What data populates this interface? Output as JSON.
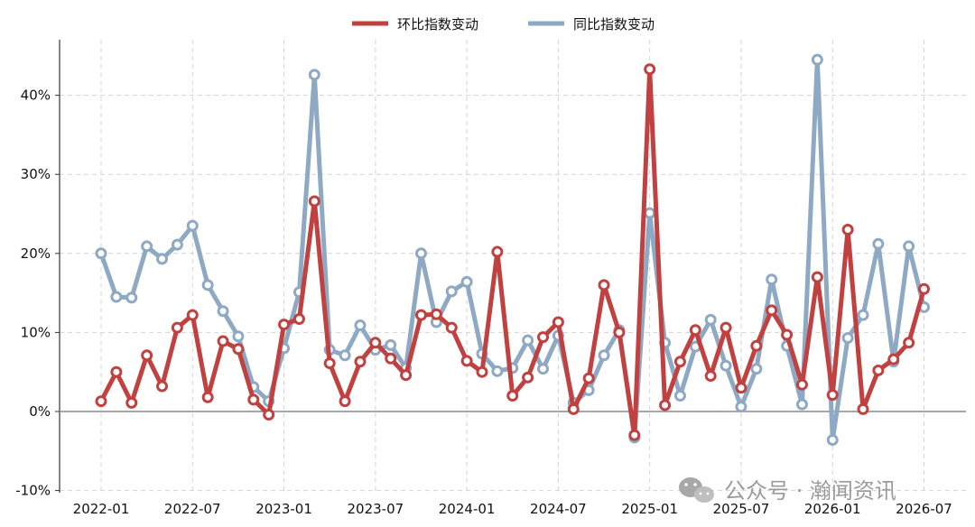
{
  "chart_data": {
    "type": "line",
    "x": [
      "2022-01",
      "2022-02",
      "2022-03",
      "2022-04",
      "2022-05",
      "2022-06",
      "2022-07",
      "2022-08",
      "2022-09",
      "2022-10",
      "2022-11",
      "2022-12",
      "2023-01",
      "2023-02",
      "2023-03",
      "2023-04",
      "2023-05",
      "2023-06",
      "2023-07",
      "2023-08",
      "2023-09",
      "2023-10",
      "2023-11",
      "2023-12",
      "2024-01",
      "2024-02",
      "2024-03",
      "2024-04",
      "2024-05",
      "2024-06",
      "2024-07",
      "2024-08",
      "2024-09",
      "2024-10",
      "2024-11",
      "2024-12",
      "2025-01",
      "2025-02",
      "2025-03",
      "2025-04",
      "2025-05",
      "2025-06",
      "2025-07",
      "2025-08",
      "2025-09",
      "2025-10",
      "2025-11",
      "2025-12",
      "2026-01",
      "2026-02",
      "2026-03",
      "2026-04",
      "2026-05",
      "2026-06",
      "2026-07"
    ],
    "x_tick_labels": [
      "2022-01",
      "2022-07",
      "2023-01",
      "2023-07",
      "2024-01",
      "2024-07",
      "2025-01",
      "2025-07",
      "2026-01",
      "2026-07"
    ],
    "y_ticks": [
      -10,
      0,
      10,
      20,
      30,
      40
    ],
    "y_tick_labels": [
      "-10%",
      "0%",
      "10%",
      "20%",
      "30%",
      "40%"
    ],
    "ylim": [
      -10,
      46
    ],
    "grid": true,
    "legend_position": "top-center",
    "series": [
      {
        "name": "环比指数变动",
        "color": "#c0413f",
        "values": [
          1.3,
          5.0,
          1.1,
          7.1,
          3.2,
          10.6,
          12.2,
          1.8,
          8.9,
          7.9,
          1.5,
          -0.4,
          11.0,
          11.7,
          26.6,
          6.1,
          1.3,
          6.3,
          8.7,
          6.7,
          4.6,
          12.2,
          12.3,
          10.6,
          6.4,
          5.0,
          20.2,
          2.0,
          4.3,
          9.4,
          11.3,
          0.3,
          4.2,
          16.0,
          10.0,
          -3.0,
          43.3,
          0.8,
          6.3,
          10.3,
          4.5,
          10.6,
          3.0,
          8.3,
          12.8,
          9.7,
          3.4,
          17.0,
          2.1,
          23.0,
          0.3,
          5.2,
          6.6,
          8.7,
          15.5
        ]
      },
      {
        "name": "同比指数变动",
        "color": "#8da9c4",
        "values": [
          20.0,
          14.5,
          14.4,
          20.9,
          19.3,
          21.1,
          23.5,
          16.0,
          12.7,
          9.5,
          3.1,
          1.3,
          8.0,
          15.1,
          42.6,
          7.8,
          7.1,
          10.9,
          7.8,
          8.4,
          5.5,
          20.0,
          11.3,
          15.2,
          16.4,
          7.3,
          5.1,
          5.5,
          9.0,
          5.4,
          9.6,
          1.1,
          2.7,
          7.1,
          10.3,
          -3.3,
          25.1,
          8.7,
          2.0,
          8.2,
          11.6,
          5.8,
          0.6,
          5.4,
          16.7,
          8.3,
          0.9,
          44.5,
          -3.6,
          9.3,
          12.2,
          21.2,
          6.3,
          20.9,
          13.2
        ]
      }
    ]
  },
  "watermark": {
    "text": "公众号 · 瀚闻资讯",
    "icon": "wechat-icon"
  }
}
